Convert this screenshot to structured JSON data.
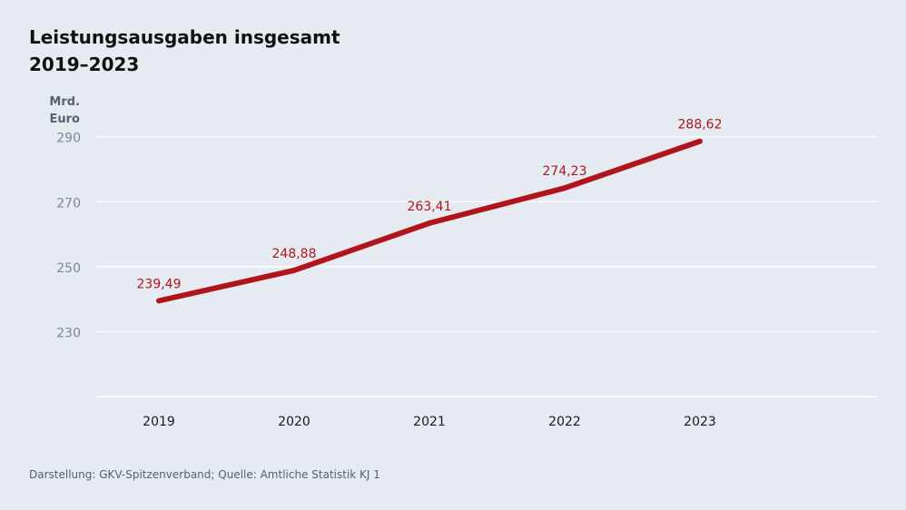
{
  "title": {
    "line1": "Leistungsausgaben insgesamt",
    "line2": "2019–2023"
  },
  "unit": {
    "line1": "Mrd.",
    "line2": "Euro"
  },
  "footer": "Darstellung: GKV-Spitzenverband; Quelle: Amtliche Statistik KJ 1",
  "colors": {
    "line": "#b0141c",
    "grid": "#ffffff",
    "tick": "#7d8893",
    "label": "#b0141c",
    "background": "#e6ebf2"
  },
  "chart_data": {
    "type": "line",
    "title": "Leistungsausgaben insgesamt 2019–2023",
    "xlabel": "",
    "ylabel": "Mrd. Euro",
    "categories": [
      "2019",
      "2020",
      "2021",
      "2022",
      "2023"
    ],
    "series": [
      {
        "name": "Leistungsausgaben insgesamt",
        "values": [
          239.49,
          248.88,
          263.41,
          274.23,
          288.62
        ],
        "labels": [
          "239,49",
          "248,88",
          "263,41",
          "274,23",
          "288,62"
        ]
      }
    ],
    "yticks": [
      230,
      250,
      270,
      290
    ],
    "ylim": [
      210,
      293
    ],
    "grid": true,
    "legend": "none"
  }
}
